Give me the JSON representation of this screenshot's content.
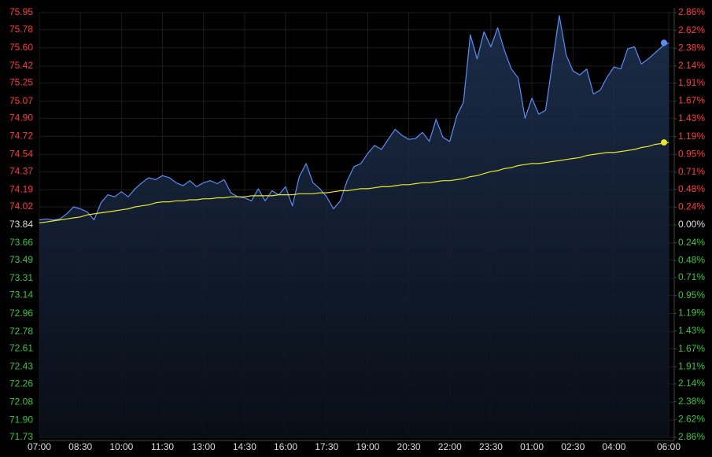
{
  "chart_data": {
    "type": "line",
    "categories": [
      "07:00",
      null,
      null,
      null,
      null,
      null,
      "08:30",
      null,
      null,
      null,
      null,
      null,
      "10:00",
      null,
      null,
      null,
      null,
      null,
      "11:30",
      null,
      null,
      null,
      null,
      null,
      "13:00",
      null,
      null,
      null,
      null,
      null,
      "14:30",
      null,
      null,
      null,
      null,
      null,
      "16:00",
      null,
      null,
      null,
      null,
      null,
      "17:30",
      null,
      null,
      null,
      null,
      null,
      "19:00",
      null,
      null,
      null,
      null,
      null,
      "20:30",
      null,
      null,
      null,
      null,
      null,
      "22:00",
      null,
      null,
      null,
      null,
      null,
      "23:30",
      null,
      null,
      null,
      null,
      null,
      "01:00",
      null,
      null,
      null,
      null,
      null,
      "02:30",
      null,
      null,
      null,
      null,
      null,
      "04:00",
      null,
      null,
      null,
      null,
      null,
      null,
      null,
      "06:00"
    ],
    "series": [
      {
        "color": "#5b8ef5",
        "values": [
          73.89,
          73.9,
          73.89,
          73.9,
          73.95,
          74.02,
          74.0,
          73.97,
          73.89,
          74.06,
          74.14,
          74.12,
          74.17,
          74.12,
          74.2,
          74.26,
          74.31,
          74.29,
          74.33,
          74.31,
          74.26,
          74.23,
          74.28,
          74.22,
          74.26,
          74.28,
          74.25,
          74.29,
          74.16,
          74.12,
          74.11,
          74.08,
          74.2,
          74.08,
          74.18,
          74.14,
          74.22,
          74.03,
          74.32,
          74.45,
          74.26,
          74.2,
          74.12,
          74.0,
          74.08,
          74.28,
          74.42,
          74.45,
          74.55,
          74.63,
          74.59,
          74.69,
          74.79,
          74.73,
          74.69,
          74.7,
          74.76,
          74.67,
          74.89,
          74.71,
          74.67,
          74.92,
          75.06,
          75.73,
          75.49,
          75.76,
          75.61,
          75.8,
          75.57,
          75.39,
          75.3,
          74.9,
          75.1,
          74.94,
          74.98,
          75.45,
          75.92,
          75.53,
          75.37,
          75.33,
          75.39,
          75.14,
          75.18,
          75.31,
          75.41,
          75.39,
          75.59,
          75.61,
          75.44,
          75.49,
          75.55,
          75.61,
          75.65
        ]
      },
      {
        "color": "#e8e82a",
        "values": [
          73.86,
          73.87,
          73.88,
          73.89,
          73.9,
          73.91,
          73.92,
          73.94,
          73.95,
          73.96,
          73.97,
          73.98,
          73.99,
          74.0,
          74.02,
          74.03,
          74.04,
          74.06,
          74.07,
          74.07,
          74.08,
          74.08,
          74.09,
          74.09,
          74.1,
          74.1,
          74.11,
          74.11,
          74.12,
          74.12,
          74.12,
          74.13,
          74.13,
          74.13,
          74.13,
          74.14,
          74.14,
          74.14,
          74.15,
          74.15,
          74.15,
          74.16,
          74.16,
          74.17,
          74.18,
          74.18,
          74.19,
          74.2,
          74.2,
          74.21,
          74.22,
          74.22,
          74.23,
          74.24,
          74.24,
          74.25,
          74.26,
          74.26,
          74.27,
          74.28,
          74.28,
          74.29,
          74.3,
          74.32,
          74.33,
          74.35,
          74.37,
          74.38,
          74.4,
          74.41,
          74.43,
          74.44,
          74.45,
          74.45,
          74.46,
          74.47,
          74.48,
          74.49,
          74.5,
          74.51,
          74.53,
          74.54,
          74.55,
          74.56,
          74.56,
          74.57,
          74.58,
          74.59,
          74.61,
          74.62,
          74.64,
          74.65,
          74.66
        ]
      }
    ],
    "ylim": [
      71.73,
      75.95
    ],
    "yticks": [
      {
        "value": 75.95,
        "label": "75.95"
      },
      {
        "value": 75.78,
        "label": "75.78"
      },
      {
        "value": 75.6,
        "label": "75.60"
      },
      {
        "value": 75.42,
        "label": "75.42"
      },
      {
        "value": 75.25,
        "label": "75.25"
      },
      {
        "value": 75.07,
        "label": "75.07"
      },
      {
        "value": 74.9,
        "label": "74.90"
      },
      {
        "value": 74.72,
        "label": "74.72"
      },
      {
        "value": 74.54,
        "label": "74.54"
      },
      {
        "value": 74.37,
        "label": "74.37"
      },
      {
        "value": 74.19,
        "label": "74.19"
      },
      {
        "value": 74.02,
        "label": "74.02"
      },
      {
        "value": 73.84,
        "label": "73.84"
      },
      {
        "value": 73.66,
        "label": "73.66"
      },
      {
        "value": 73.49,
        "label": "73.49"
      },
      {
        "value": 73.31,
        "label": "73.31"
      },
      {
        "value": 73.14,
        "label": "73.14"
      },
      {
        "value": 72.96,
        "label": "72.96"
      },
      {
        "value": 72.78,
        "label": "72.78"
      },
      {
        "value": 72.61,
        "label": "72.61"
      },
      {
        "value": 72.43,
        "label": "72.43"
      },
      {
        "value": 72.26,
        "label": "72.26"
      },
      {
        "value": 72.08,
        "label": "72.08"
      },
      {
        "value": 71.9,
        "label": "71.90"
      },
      {
        "value": 71.73,
        "label": "71.73"
      }
    ],
    "y2lim": [
      -2.86,
      2.86
    ],
    "y2ticks": [
      {
        "value": 2.86,
        "label": "2.86%"
      },
      {
        "value": 2.62,
        "label": "2.62%"
      },
      {
        "value": 2.38,
        "label": "2.38%"
      },
      {
        "value": 2.14,
        "label": "2.14%"
      },
      {
        "value": 1.91,
        "label": "1.91%"
      },
      {
        "value": 1.67,
        "label": "1.67%"
      },
      {
        "value": 1.43,
        "label": "1.43%"
      },
      {
        "value": 1.19,
        "label": "1.19%"
      },
      {
        "value": 0.95,
        "label": "0.95%"
      },
      {
        "value": 0.71,
        "label": "0.71%"
      },
      {
        "value": 0.48,
        "label": "0.48%"
      },
      {
        "value": 0.24,
        "label": "0.24%"
      },
      {
        "value": 0,
        "label": "0.00%"
      },
      {
        "value": -0.24,
        "label": "0.24%"
      },
      {
        "value": -0.48,
        "label": "0.48%"
      },
      {
        "value": -0.71,
        "label": "0.71%"
      },
      {
        "value": -0.95,
        "label": "0.95%"
      },
      {
        "value": -1.19,
        "label": "1.19%"
      },
      {
        "value": -1.43,
        "label": "1.43%"
      },
      {
        "value": -1.67,
        "label": "1.67%"
      },
      {
        "value": -1.91,
        "label": "1.91%"
      },
      {
        "value": -2.14,
        "label": "2.14%"
      },
      {
        "value": -2.38,
        "label": "2.38%"
      },
      {
        "value": -2.62,
        "label": "2.62%"
      },
      {
        "value": -2.86,
        "label": "2.86%"
      }
    ],
    "grid": true,
    "up_color": "#ff3b3b",
    "down_color": "#3ec43e",
    "flat_color": "#dddddd"
  }
}
